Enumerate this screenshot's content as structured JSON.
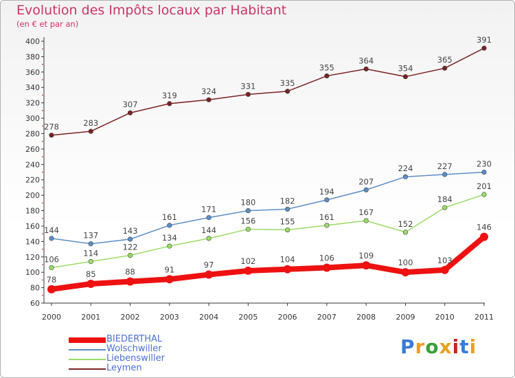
{
  "header": {
    "title": "Evolution des Impôts locaux par Habitant",
    "subtitle": "(en € et par an)"
  },
  "logo": {
    "text": "Proxiti",
    "colors": [
      "#3a7bd5",
      "#e8a020",
      "#3aa03a",
      "#e8a020",
      "#cc2222",
      "#3a7bd5",
      "#e8a020"
    ]
  },
  "chart_data": {
    "type": "line",
    "title": "Evolution des Impôts locaux par Habitant",
    "subtitle": "(en € et par an)",
    "x": [
      "2000",
      "2001",
      "2002",
      "2003",
      "2004",
      "2005",
      "2006",
      "2007",
      "2008",
      "2009",
      "2010",
      "2011"
    ],
    "ylim": [
      60,
      400
    ],
    "yticks": [
      60,
      80,
      100,
      120,
      140,
      160,
      180,
      200,
      220,
      240,
      260,
      280,
      300,
      320,
      340,
      360,
      380,
      400
    ],
    "grid": false,
    "legend_position": "bottom-left",
    "series": [
      {
        "name": "BIEDERTHAL",
        "color": "#ee1111",
        "values": [
          78,
          85,
          88,
          91,
          97,
          102,
          104,
          106,
          109,
          100,
          103,
          146
        ]
      },
      {
        "name": "Wolschwiller",
        "color": "#5b8ec6",
        "values": [
          144,
          137,
          143,
          161,
          171,
          180,
          182,
          194,
          207,
          224,
          227,
          230
        ]
      },
      {
        "name": "Liebenswiller",
        "color": "#99dd66",
        "values": [
          106,
          114,
          122,
          134,
          144,
          156,
          155,
          161,
          167,
          152,
          184,
          201
        ]
      },
      {
        "name": "Leymen",
        "color": "#7a2222",
        "values": [
          278,
          283,
          307,
          319,
          324,
          331,
          335,
          355,
          364,
          354,
          365,
          391
        ]
      }
    ]
  }
}
